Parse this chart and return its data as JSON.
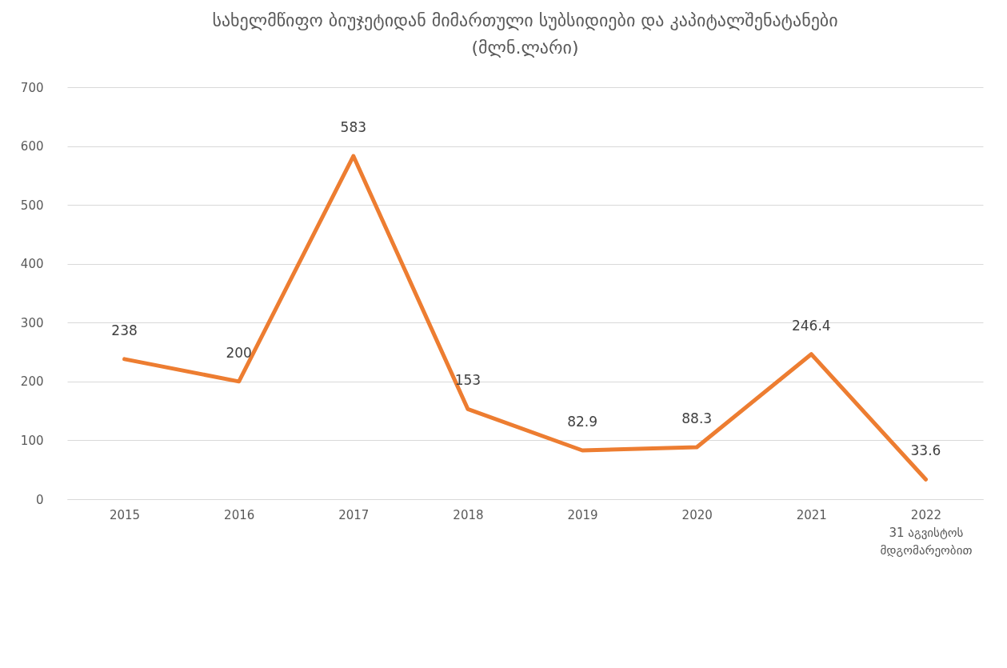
{
  "chart_data": {
    "type": "line",
    "title": "სახელმწიფო ბიუჯეტიდან მიმართული სუბსიდიები და კაპიტალშენატანები",
    "subtitle": "(მლნ.ლარი)",
    "categories": [
      "2015",
      "2016",
      "2017",
      "2018",
      "2019",
      "2020",
      "2021",
      "2022\n31 აგვისტოს\nმდგომარეობით"
    ],
    "series": [
      {
        "color": "#ed7d31",
        "values": [
          238,
          200,
          583,
          153,
          82.9,
          88.3,
          246.4,
          33.6
        ]
      }
    ],
    "ylim": [
      0,
      700
    ],
    "yticks": [
      0,
      100,
      200,
      300,
      400,
      500,
      600,
      700
    ],
    "grid": "y",
    "data_labels": true,
    "marker": "none",
    "line_style": "solid"
  }
}
